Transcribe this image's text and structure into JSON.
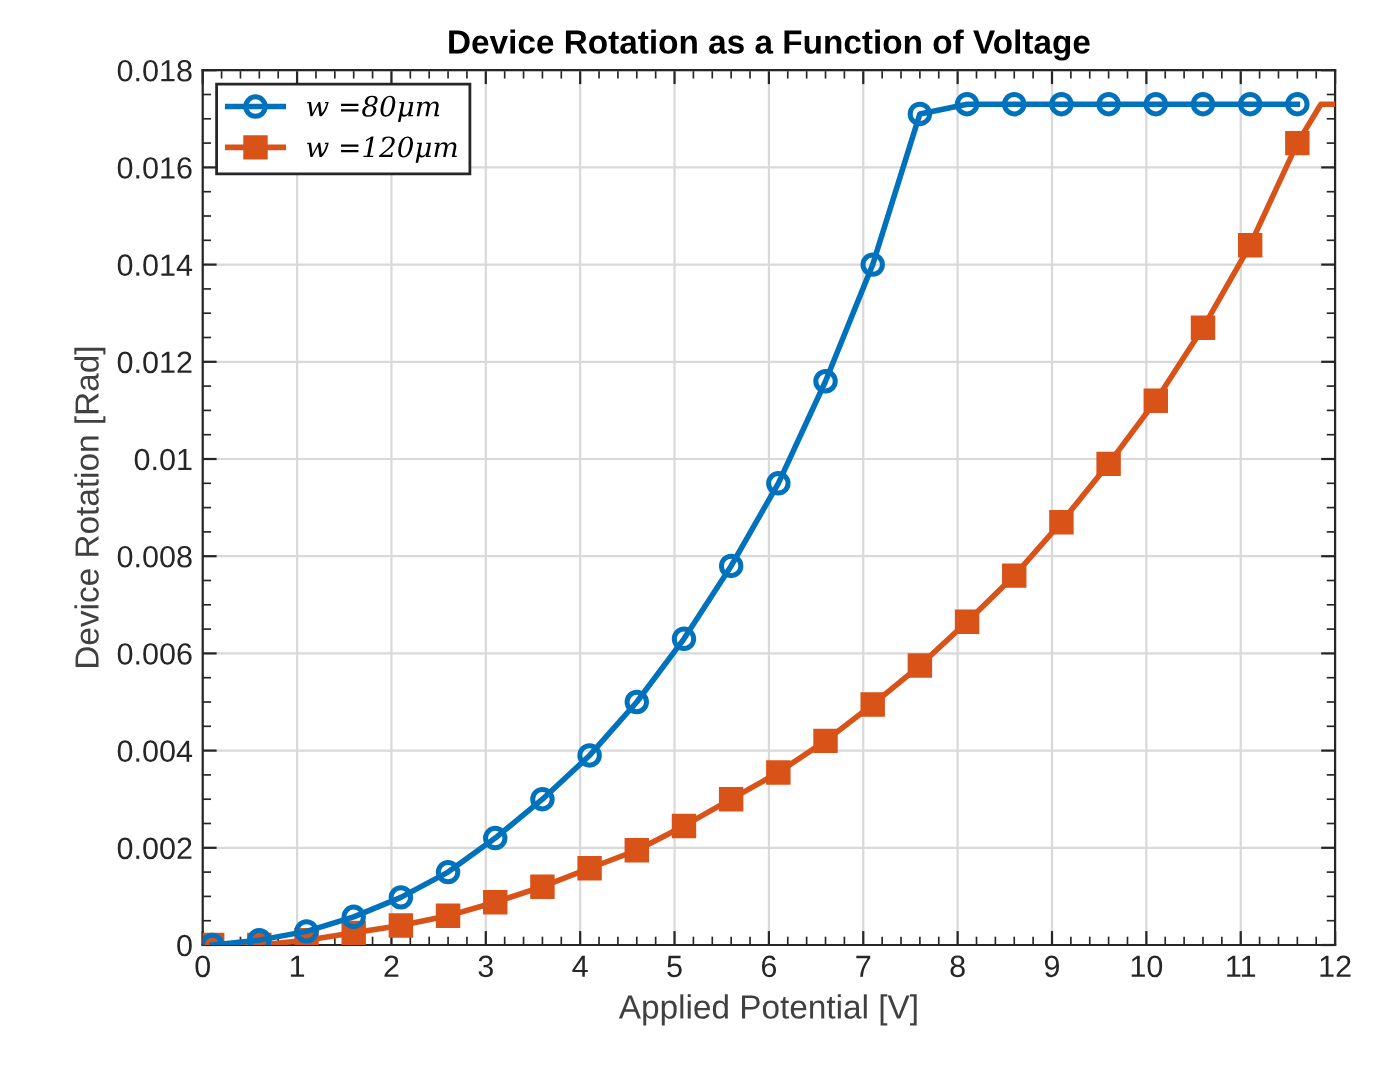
{
  "chart_data": {
    "type": "line",
    "title": "Device Rotation as a Function of Voltage",
    "xlabel": "Applied Potential [V]",
    "ylabel": "Device Rotation [Rad]",
    "xlim": [
      0,
      12
    ],
    "xticks": [
      0,
      1,
      2,
      3,
      4,
      5,
      6,
      7,
      8,
      9,
      10,
      11,
      12
    ],
    "ylim": [
      0,
      0.018
    ],
    "yticks": [
      0,
      0.002,
      0.004,
      0.006,
      0.008,
      0.01,
      0.012,
      0.014,
      0.016,
      0.018
    ],
    "grid": true,
    "legend": "top left",
    "line_style": "solid",
    "series": [
      {
        "marker": "none",
        "color": "#d95319",
        "x": [
          11.6,
          11.85,
          12
        ],
        "values": [
          0.0165,
          0.0173,
          0.0173
        ]
      },
      {
        "name": "w =80μm",
        "marker": "circle",
        "color": "#0072bd",
        "x": [
          0.1,
          0.6,
          1.1,
          1.6,
          2.1,
          2.6,
          3.1,
          3.6,
          4.1,
          4.6,
          5.1,
          5.6,
          6.1,
          6.6,
          7.1,
          7.6,
          8.1,
          8.6,
          9.1,
          9.6,
          10.1,
          10.6,
          11.1,
          11.6
        ],
        "values": [
          0,
          0.0001,
          0.00028,
          0.00058,
          0.00098,
          0.0015,
          0.0022,
          0.003,
          0.0039,
          0.005,
          0.0063,
          0.0078,
          0.0095,
          0.0116,
          0.014,
          0.0171,
          0.0173,
          0.0173,
          0.0173,
          0.0173,
          0.0173,
          0.0173,
          0.0173,
          0.0173
        ]
      },
      {
        "name": "w =120μm",
        "marker": "square",
        "color": "#d95319",
        "x": [
          0.1,
          0.6,
          1.1,
          1.6,
          2.1,
          2.6,
          3.1,
          3.6,
          4.1,
          4.6,
          5.1,
          5.6,
          6.1,
          6.6,
          7.1,
          7.6,
          8.1,
          8.6,
          9.1,
          9.6,
          10.1,
          10.6,
          11.1,
          11.6
        ],
        "values": [
          0,
          0,
          0.0001,
          0.00025,
          0.0004,
          0.0006,
          0.00088,
          0.0012,
          0.00158,
          0.00195,
          0.00245,
          0.003,
          0.00355,
          0.0042,
          0.00495,
          0.00575,
          0.00665,
          0.0076,
          0.0087,
          0.0099,
          0.0112,
          0.0127,
          0.0144,
          0.0165
        ]
      }
    ]
  }
}
